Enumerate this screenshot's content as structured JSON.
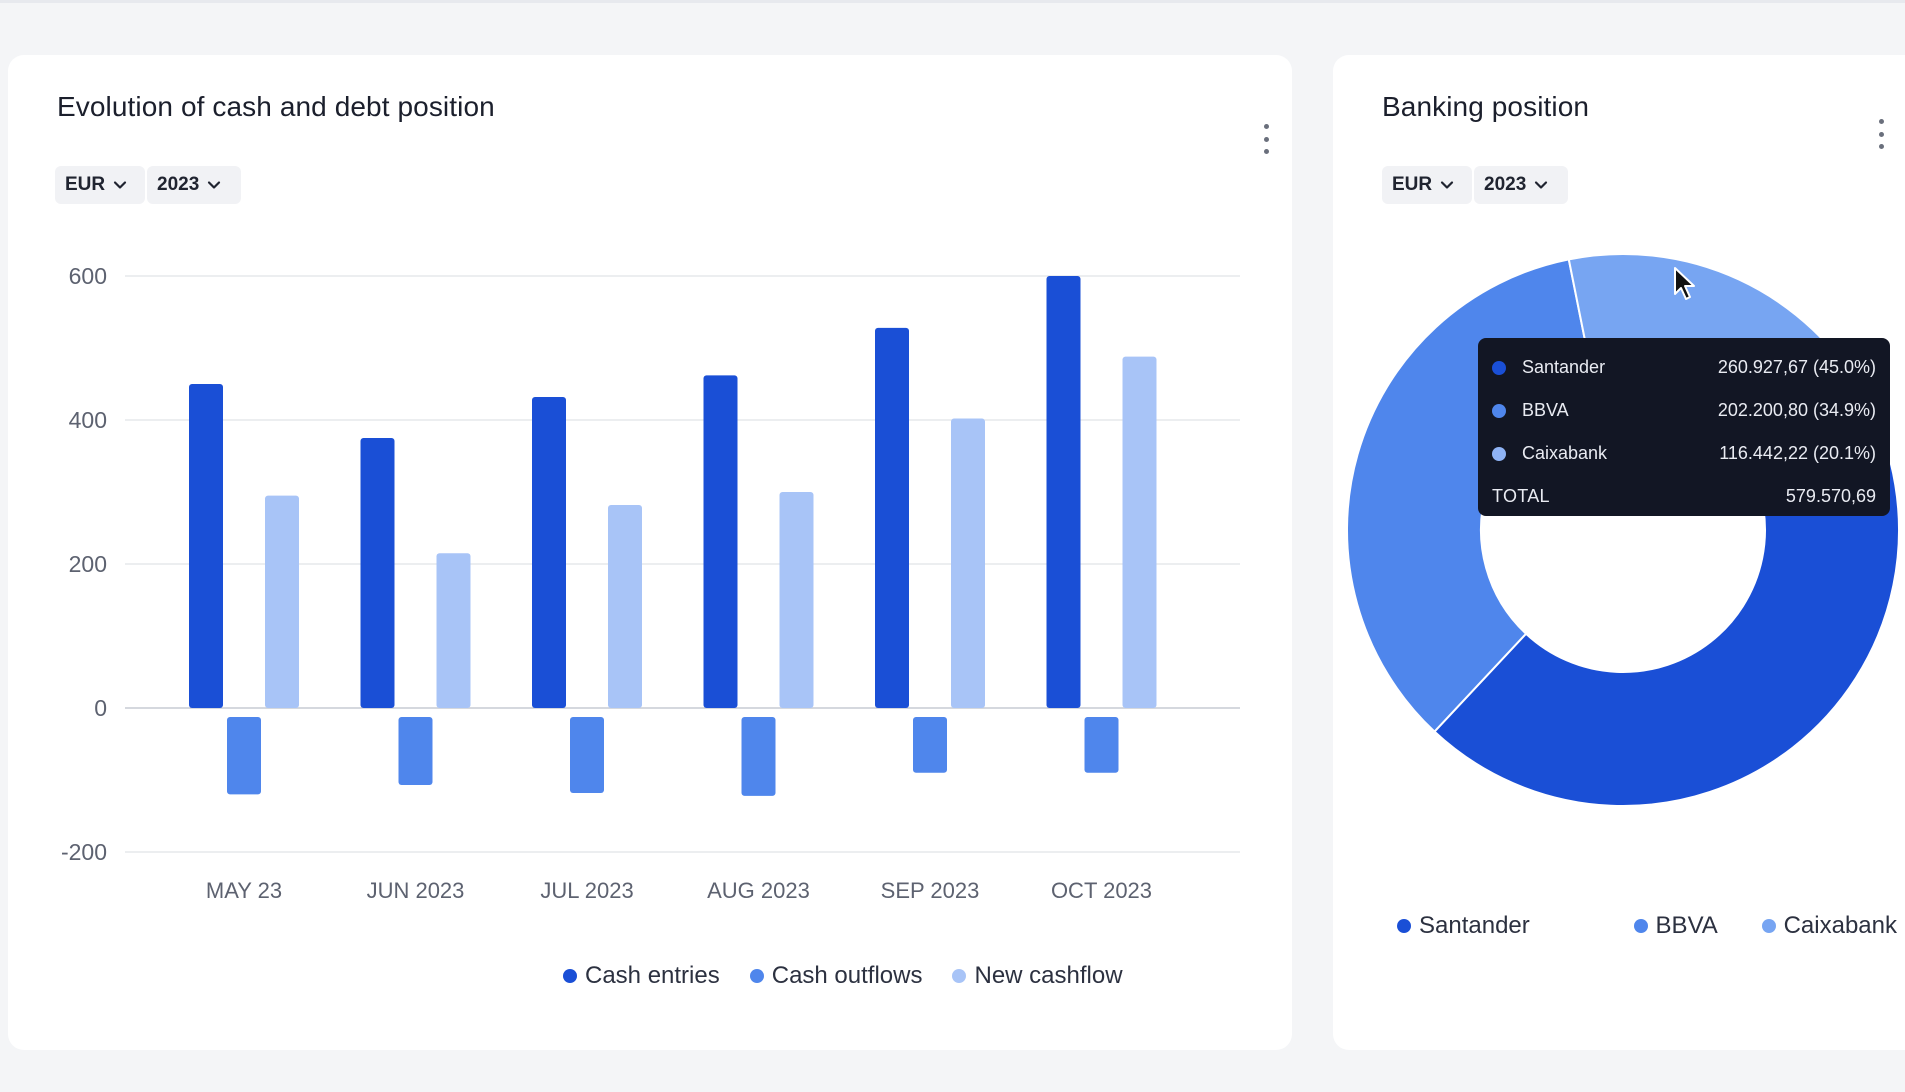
{
  "left_card": {
    "title": "Evolution of cash and debt position",
    "currency": "EUR",
    "year": "2023",
    "legend": [
      {
        "label": "Cash entries",
        "color": "#1a4fd6"
      },
      {
        "label": "Cash outflows",
        "color": "#4f86ec"
      },
      {
        "label": "New cashflow",
        "color": "#a8c4f7"
      }
    ]
  },
  "right_card": {
    "title": "Banking position",
    "currency": "EUR",
    "year": "2023",
    "legend": [
      {
        "label": "Santander",
        "color": "#1a4fd6"
      },
      {
        "label": "BBVA",
        "color": "#4f86ec"
      },
      {
        "label": "Caixabank",
        "color": "#77a5f2"
      }
    ],
    "tooltip": {
      "rows": [
        {
          "label": "Santander",
          "value": "260.927,67 (45.0%)",
          "color": "#1a4fd6"
        },
        {
          "label": "BBVA",
          "value": "202.200,80 (34.9%)",
          "color": "#4f86ec"
        },
        {
          "label": "Caixabank",
          "value": "116.442,22 (20.1%)",
          "color": "#8fb3f5"
        }
      ],
      "total_label": "TOTAL",
      "total_value": "579.570,69"
    }
  },
  "chart_data": [
    {
      "type": "bar",
      "title": "Evolution of cash and debt position",
      "categories": [
        "MAY 23",
        "JUN 2023",
        "JUL 2023",
        "AUG 2023",
        "SEP 2023",
        "OCT 2023"
      ],
      "series": [
        {
          "name": "Cash entries",
          "values": [
            450,
            375,
            432,
            462,
            528,
            600
          ],
          "color": "#1a4fd6"
        },
        {
          "name": "Cash outflows",
          "values": [
            -120,
            -107,
            -118,
            -122,
            -90,
            -90
          ],
          "color": "#4f86ec"
        },
        {
          "name": "New cashflow",
          "values": [
            295,
            215,
            282,
            300,
            402,
            488
          ],
          "color": "#a8c4f7"
        }
      ],
      "ylim": [
        -200,
        600
      ],
      "yticks": [
        "600",
        "400",
        "200",
        "0",
        "-200"
      ],
      "grid": true,
      "legend": "bottom"
    },
    {
      "type": "pie",
      "title": "Banking position",
      "labels": [
        "Santander",
        "BBVA",
        "Caixabank"
      ],
      "values": [
        260927.67,
        202200.8,
        116442.22
      ],
      "percentages": [
        45.0,
        34.9,
        20.1
      ],
      "colors": [
        "#1a4fd6",
        "#4f86ec",
        "#77a5f2"
      ],
      "donut": true,
      "legend": "bottom"
    }
  ]
}
